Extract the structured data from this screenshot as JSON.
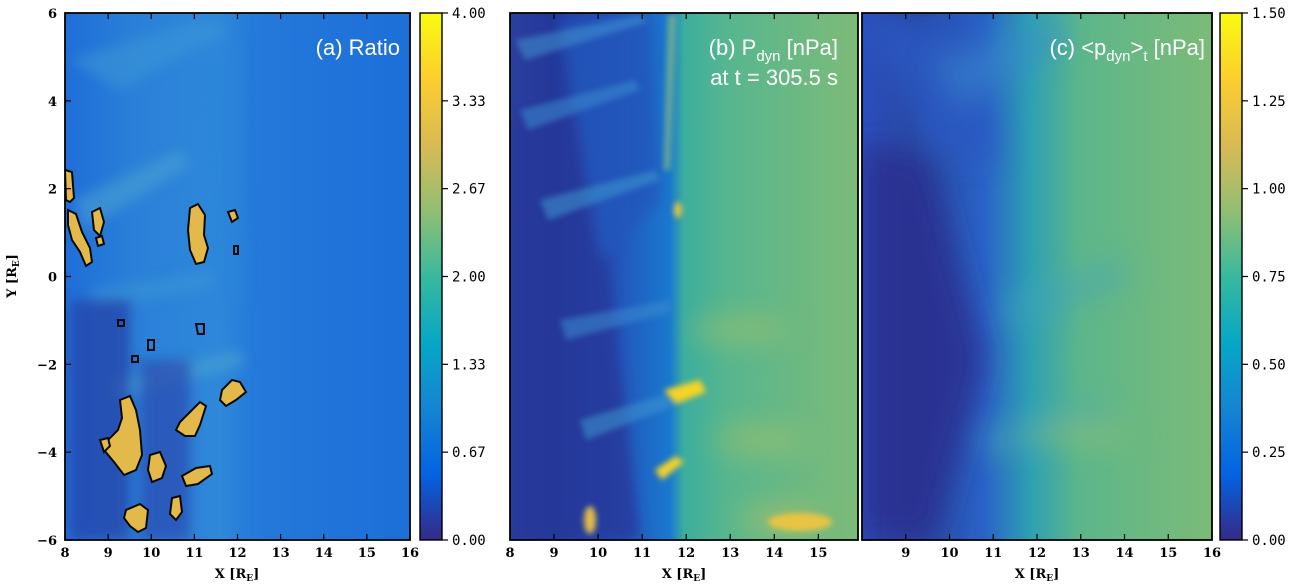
{
  "colors": {
    "cmap": [
      "#352a87",
      "#0363e1",
      "#1485d4",
      "#06a7c6",
      "#38b99e",
      "#92bf73",
      "#d9ba56",
      "#fcce2e",
      "#f9fb0e"
    ],
    "contour": "#0a0a0a"
  },
  "chart_data": [
    {
      "type": "heatmap",
      "title_main": "(a) Ratio",
      "title_sub": "",
      "xlabel": "X [R",
      "xlabel_sub": "E",
      "xlabel_close": "]",
      "ylabel": "Y [R",
      "ylabel_sub": "E",
      "ylabel_close": "]",
      "xlim": [
        8,
        16
      ],
      "ylim": [
        -6,
        6
      ],
      "xticks": [
        "8",
        "9",
        "10",
        "11",
        "12",
        "13",
        "14",
        "15",
        "16"
      ],
      "yticks": [
        "−6",
        "−4",
        "−2",
        "0",
        "2",
        "4",
        "6"
      ],
      "colorbar": {
        "ticks": [
          "0.00",
          "0.67",
          "1.33",
          "2.00",
          "2.67",
          "3.33",
          "4.00"
        ],
        "range": [
          0,
          4
        ]
      },
      "description": "Ratio field; background ~1 (blue), hot spots ~3 (yellow) outlined by black contours near x=8–12"
    },
    {
      "type": "heatmap",
      "title_main": "(b) P",
      "title_sub": "dyn",
      "title_unit": " [nPa]",
      "title_line2": "at t = 305.5 s",
      "xlabel": "X [R",
      "xlabel_sub": "E",
      "xlabel_close": "]",
      "xlim": [
        8,
        16
      ],
      "ylim": [
        -6,
        6
      ],
      "xticks": [
        "8",
        "9",
        "10",
        "11",
        "12",
        "13",
        "14",
        "15"
      ],
      "colorbar": {
        "ticks": [
          "0.00",
          "0.25",
          "0.50",
          "0.75",
          "1.00",
          "1.25",
          "1.50"
        ],
        "range": [
          0,
          1.5
        ]
      }
    },
    {
      "type": "heatmap",
      "title_main": "(c) <p",
      "title_sub": "dyn",
      "title_unit": ">",
      "title_sub2": "t",
      "title_unit2": " [nPa]",
      "xlabel": "X [R",
      "xlabel_sub": "E",
      "xlabel_close": "]",
      "xlim": [
        8,
        16
      ],
      "ylim": [
        -6,
        6
      ],
      "xticks": [
        "9",
        "10",
        "11",
        "12",
        "13",
        "14",
        "15",
        "16"
      ],
      "colorbar": {
        "ticks": [
          "0.00",
          "0.25",
          "0.50",
          "0.75",
          "1.00",
          "1.25",
          "1.50"
        ],
        "range": [
          0,
          1.5
        ]
      }
    }
  ]
}
